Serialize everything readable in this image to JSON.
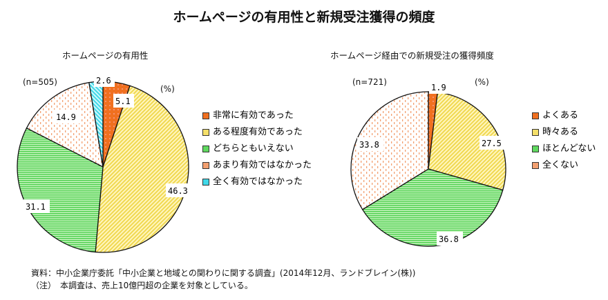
{
  "title": "ホームページの有用性と新規受注獲得の頻度",
  "source": "資料：中小企業庁委託「中小企業と地域との関わりに関する調査」(2014年12月、ランドブレイン(株))",
  "note": "（注）　本調査は、売上10億円超の企業を対象としている。",
  "chart_data": [
    {
      "type": "pie",
      "title": "ホームページの有用性",
      "n_label": "(n=505)",
      "unit_label": "(%)",
      "categories": [
        "非常に有効であった",
        "ある程度有効であった",
        "どちらともいえない",
        "あまり有効ではなかった",
        "全く有効ではなかった"
      ],
      "values": [
        5.1,
        46.3,
        31.1,
        14.9,
        2.6
      ],
      "value_labels": [
        "5.1",
        "46.3",
        "31.1",
        "14.9",
        "2.6"
      ],
      "colors": [
        "#f07020",
        "#f5e06a",
        "#5fd85f",
        "#f3a070",
        "#40d8e8"
      ],
      "legend": "right",
      "start": "top",
      "direction": "clockwise"
    },
    {
      "type": "pie",
      "title": "ホームページ経由での新規受注の獲得頻度",
      "n_label": "(n=721)",
      "unit_label": "(%)",
      "categories": [
        "よくある",
        "時々ある",
        "ほとんどない",
        "全くない"
      ],
      "values": [
        1.9,
        27.5,
        36.8,
        33.8
      ],
      "value_labels": [
        "1.9",
        "27.5",
        "36.8",
        "33.8"
      ],
      "colors": [
        "#f07020",
        "#f5e06a",
        "#5fd85f",
        "#f3a070"
      ],
      "legend": "right",
      "start": "top",
      "direction": "clockwise"
    }
  ]
}
